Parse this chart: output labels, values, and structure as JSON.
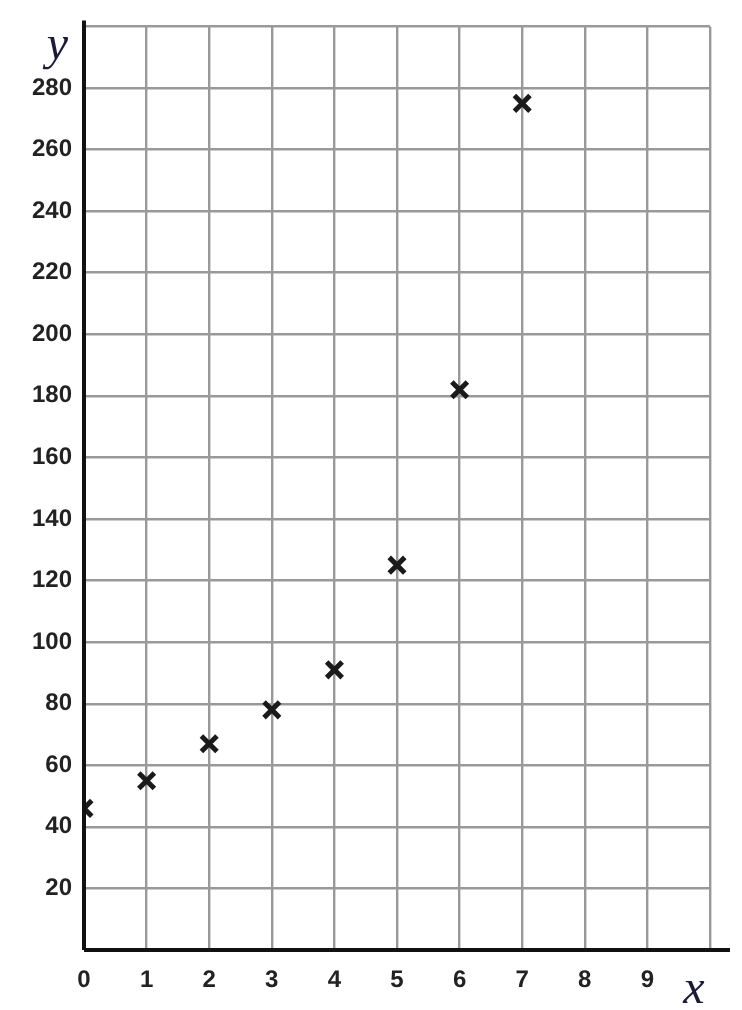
{
  "chart_data": {
    "type": "scatter",
    "xlabel": "x",
    "ylabel": "y",
    "x": [
      0,
      1,
      2,
      3,
      4,
      5,
      6,
      7
    ],
    "series": [
      {
        "color": "#1a1a1a",
        "values": [
          46,
          55,
          67,
          78,
          91,
          125,
          182,
          275
        ]
      }
    ],
    "xlim": [
      0,
      10
    ],
    "xticks": [
      0,
      1,
      2,
      3,
      4,
      5,
      6,
      7,
      8,
      9,
      {
        "value": 10,
        "label": null
      }
    ],
    "ylim": [
      0,
      300
    ],
    "yticks": [
      {
        "value": 0,
        "label": null
      },
      20,
      40,
      60,
      80,
      100,
      120,
      140,
      160,
      180,
      200,
      220,
      240,
      260,
      280,
      {
        "value": 300,
        "label": null
      }
    ],
    "grid": true,
    "legend": false,
    "marker": "cross"
  }
}
